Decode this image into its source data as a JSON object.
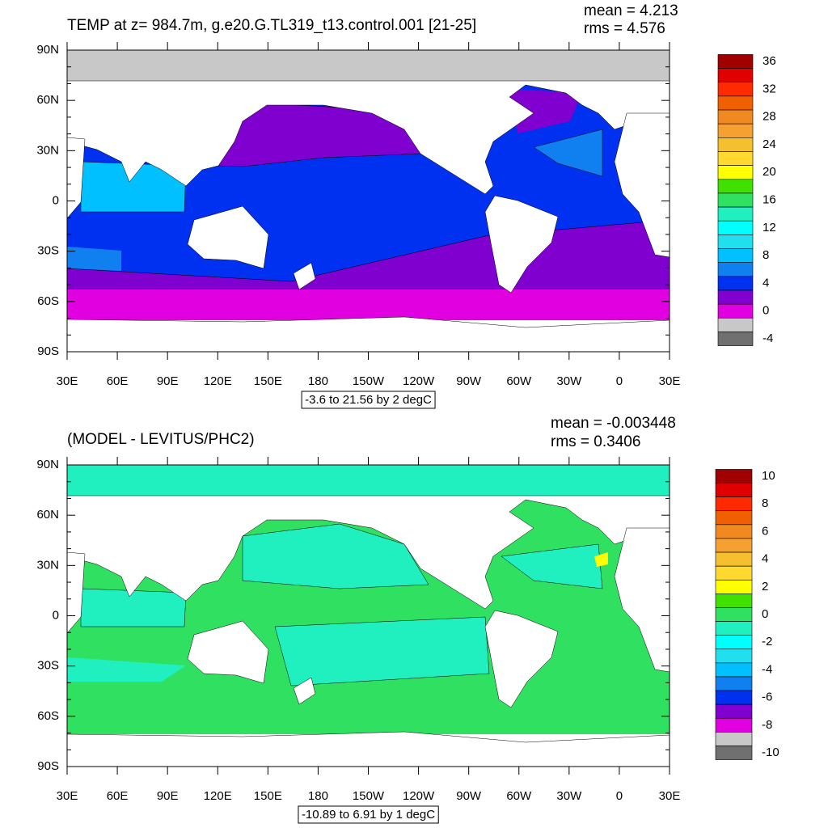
{
  "panels": [
    {
      "title": "TEMP at z= 984.7m, g.e20.G.TL319_t13.control.001 [21-25]",
      "mean": "mean = 4.213",
      "rms": "rms = 4.576",
      "range_note": "-3.6 to 21.56 by 2 degC",
      "colorbar": {
        "labels": [
          "36",
          "32",
          "28",
          "24",
          "20",
          "16",
          "12",
          "8",
          "4",
          "0",
          "-4"
        ],
        "colors": [
          "#a00000",
          "#e00000",
          "#ff2a00",
          "#f06000",
          "#f08a20",
          "#f5a030",
          "#f5c030",
          "#ffd830",
          "#ffff00",
          "#40e000",
          "#30e060",
          "#20f0c0",
          "#00ffff",
          "#20e0f0",
          "#00c0ff",
          "#1080f0",
          "#0030f0",
          "#8000d0",
          "#e000e0",
          "#c8c8c8",
          "#707070"
        ]
      }
    },
    {
      "title": "(MODEL - LEVITUS/PHC2)",
      "mean": "mean = -0.003448",
      "rms": "rms = 0.3406",
      "range_note": "-10.89 to 6.91 by 1 degC",
      "colorbar": {
        "labels": [
          "10",
          "8",
          "6",
          "4",
          "2",
          "0",
          "-2",
          "-4",
          "-6",
          "-8",
          "-10"
        ],
        "colors": [
          "#a00000",
          "#e00000",
          "#ff2a00",
          "#f06000",
          "#f08a20",
          "#f5a030",
          "#f5c030",
          "#ffd830",
          "#ffff00",
          "#40e000",
          "#30e060",
          "#20f0c0",
          "#00ffff",
          "#20e0f0",
          "#00c0ff",
          "#1080f0",
          "#0030f0",
          "#8000d0",
          "#e000e0",
          "#c8c8c8",
          "#707070"
        ]
      }
    }
  ],
  "lat_labels": [
    "90N",
    "60N",
    "30N",
    "0",
    "30S",
    "60S",
    "90S"
  ],
  "lon_labels": [
    "30E",
    "60E",
    "90E",
    "120E",
    "150E",
    "180",
    "150W",
    "120W",
    "90W",
    "60W",
    "30W",
    "0",
    "30E"
  ]
}
